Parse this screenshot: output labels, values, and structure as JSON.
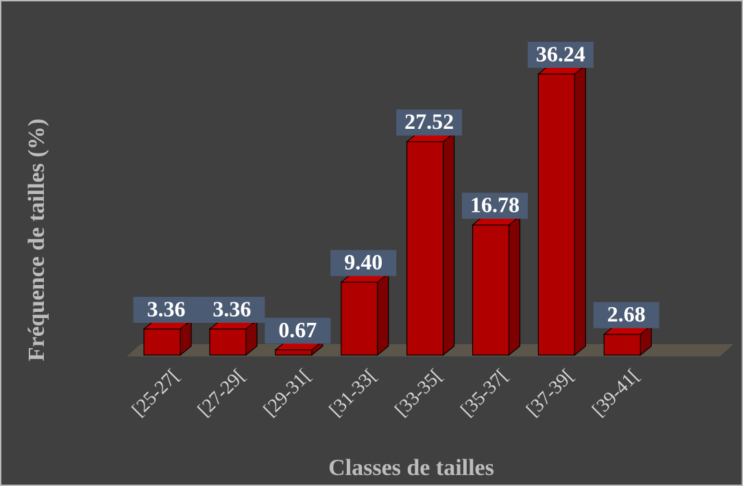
{
  "chart_data": {
    "type": "bar3d",
    "x_label": "Classes de tailles",
    "y_label": "Fréquence de tailles (%)",
    "categories": [
      "[25-27[",
      "[27-29[",
      "[29-31[",
      "[31-33[",
      "[33-35[",
      "[35-37[",
      "[37-39[",
      "[39-41["
    ],
    "values": [
      3.36,
      3.36,
      0.67,
      9.4,
      27.52,
      16.78,
      36.24,
      2.68
    ],
    "value_labels": [
      "3.36",
      "3.36",
      "0.67",
      "9.40",
      "27.52",
      "16.78",
      "36.24",
      "2.68"
    ],
    "color": "#b00000"
  }
}
